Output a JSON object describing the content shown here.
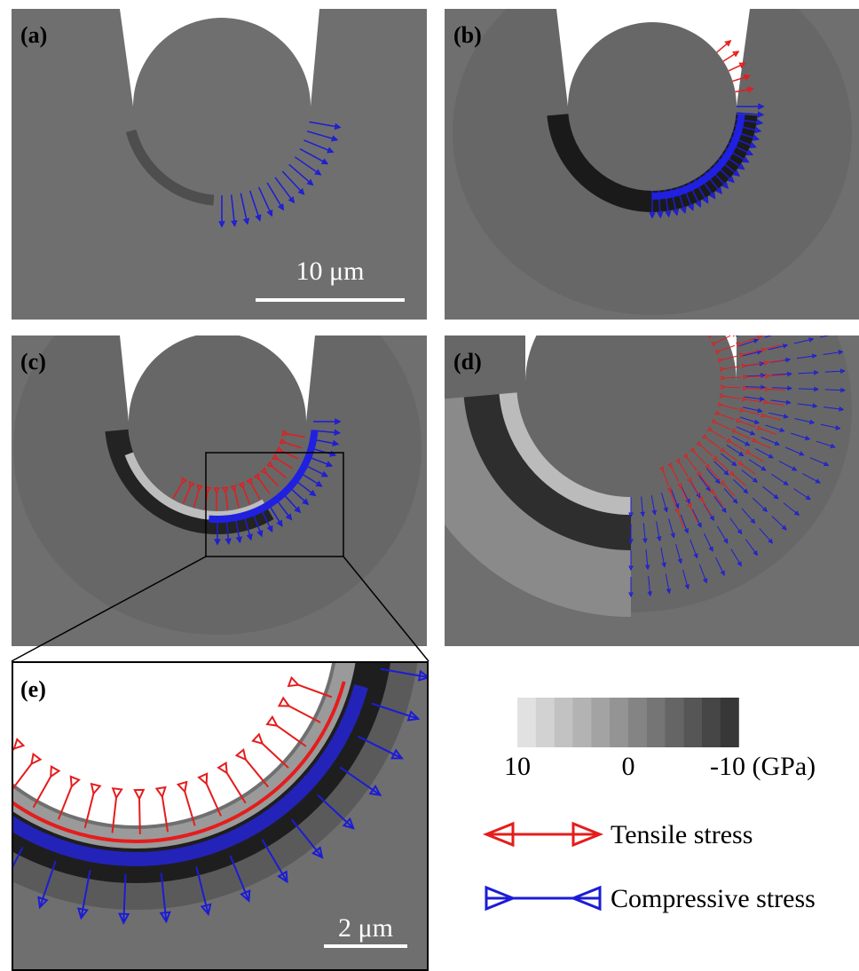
{
  "panels": [
    {
      "label": "(a)"
    },
    {
      "label": "(b)"
    },
    {
      "label": "(c)"
    },
    {
      "label": "(d)"
    },
    {
      "label": "(e)"
    }
  ],
  "scale_bars": {
    "a": "10 μm",
    "e": "2 μm"
  },
  "colorbar": {
    "labels": [
      "10",
      "0",
      "-10 (GPa)"
    ]
  },
  "legend": [
    {
      "label": "Tensile stress"
    },
    {
      "label": "Compressive stress"
    }
  ]
}
